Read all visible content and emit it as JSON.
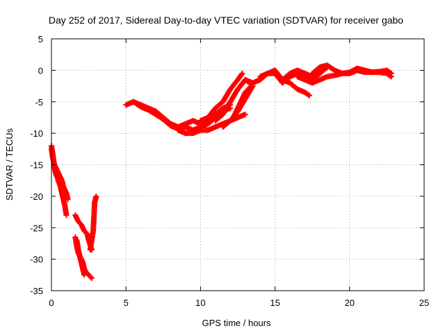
{
  "chart_data": {
    "type": "scatter",
    "title": "Day 252 of 2017, Sidereal Day-to-day VTEC variation (SDTVAR) for receiver gabo",
    "xlabel": "GPS time / hours",
    "ylabel": "SDTVAR / TECUs",
    "xlim": [
      0,
      25
    ],
    "ylim": [
      -35,
      5
    ],
    "xticks": [
      0,
      5,
      10,
      15,
      20,
      25
    ],
    "yticks": [
      5,
      0,
      -5,
      -10,
      -15,
      -20,
      -25,
      -30,
      -35
    ],
    "xtick_labels": [
      "0",
      "5",
      "10",
      "15",
      "20",
      "25"
    ],
    "ytick_labels": [
      "5",
      "0",
      "-5",
      "-10",
      "-15",
      "-20",
      "-25",
      "-30",
      "-35"
    ],
    "grid": true,
    "marker": "+",
    "color": "#ff0000",
    "series": [
      {
        "name": "arc-a",
        "x": [
          0.0,
          0.1,
          0.2,
          0.3,
          0.4,
          0.5,
          0.6,
          0.7,
          0.8,
          0.9,
          1.0
        ],
        "y": [
          -12.0,
          -13.5,
          -15.5,
          -16.5,
          -17.0,
          -17.8,
          -18.5,
          -19.5,
          -20.5,
          -21.5,
          -23.0
        ]
      },
      {
        "name": "arc-b",
        "x": [
          0.0,
          0.1,
          0.2,
          0.3,
          0.4,
          0.5,
          0.6,
          0.7,
          0.8,
          0.9,
          1.0,
          1.1
        ],
        "y": [
          -12.5,
          -14.0,
          -15.0,
          -15.5,
          -16.0,
          -16.5,
          -17.0,
          -17.5,
          -18.5,
          -19.0,
          -19.5,
          -20.5
        ]
      },
      {
        "name": "arc-c",
        "x": [
          1.6,
          1.8,
          2.0,
          2.2,
          2.4,
          2.5,
          2.7
        ],
        "y": [
          -23.0,
          -24.0,
          -24.5,
          -25.5,
          -26.0,
          -27.0,
          -28.5
        ]
      },
      {
        "name": "arc-d",
        "x": [
          1.6,
          1.7,
          1.8,
          1.9,
          2.0,
          2.1,
          2.2,
          2.3,
          2.5,
          2.7
        ],
        "y": [
          -26.5,
          -28.0,
          -29.0,
          -29.5,
          -30.0,
          -30.5,
          -31.5,
          -32.0,
          -32.5,
          -33.0
        ]
      },
      {
        "name": "arc-e",
        "x": [
          1.7,
          1.8,
          1.9,
          2.0,
          2.1,
          2.2
        ],
        "y": [
          -27.0,
          -28.5,
          -29.5,
          -30.5,
          -31.5,
          -32.5
        ]
      },
      {
        "name": "arc-f",
        "x": [
          2.6,
          2.8,
          2.9,
          3.0
        ],
        "y": [
          -28.5,
          -25.5,
          -21.0,
          -20.0
        ]
      },
      {
        "name": "arc-g",
        "x": [
          5.0,
          5.5,
          6.0,
          6.5,
          7.0,
          7.5,
          8.0,
          8.5,
          9.0,
          9.5,
          10.0,
          10.5,
          11.0,
          11.5,
          12.0
        ],
        "y": [
          -5.5,
          -5.0,
          -5.5,
          -6.0,
          -6.5,
          -7.5,
          -8.5,
          -9.0,
          -8.5,
          -8.0,
          -8.5,
          -8.0,
          -7.0,
          -6.0,
          -5.5
        ]
      },
      {
        "name": "arc-h",
        "x": [
          5.5,
          6.0,
          6.5,
          7.0,
          7.5,
          8.0,
          8.5,
          9.0,
          9.5,
          10.0,
          10.5,
          11.0,
          11.5,
          12.0
        ],
        "y": [
          -5.0,
          -5.8,
          -6.3,
          -7.0,
          -7.8,
          -8.8,
          -9.3,
          -9.0,
          -9.5,
          -9.0,
          -8.5,
          -7.5,
          -6.5,
          -6.0
        ]
      },
      {
        "name": "arc-i",
        "x": [
          8.5,
          9.0,
          9.5,
          10.0,
          10.5,
          11.0,
          11.5,
          12.0,
          12.5,
          13.0
        ],
        "y": [
          -9.5,
          -10.0,
          -10.0,
          -9.5,
          -9.5,
          -9.0,
          -8.5,
          -8.0,
          -7.5,
          -7.0
        ]
      },
      {
        "name": "arc-j",
        "x": [
          10.0,
          10.5,
          11.0,
          11.5,
          12.0,
          12.5,
          12.8
        ],
        "y": [
          -8.0,
          -7.5,
          -6.0,
          -5.0,
          -3.0,
          -1.5,
          -0.5
        ]
      },
      {
        "name": "arc-k",
        "x": [
          11.0,
          11.5,
          12.0,
          12.5,
          13.0,
          13.3
        ],
        "y": [
          -8.0,
          -7.0,
          -5.0,
          -3.0,
          -1.5,
          -2.0
        ]
      },
      {
        "name": "arc-l",
        "x": [
          11.5,
          12.0,
          12.5,
          13.0,
          13.5
        ],
        "y": [
          -9.0,
          -8.0,
          -6.5,
          -4.5,
          -2.5
        ]
      },
      {
        "name": "arc-m",
        "x": [
          12.2,
          12.6,
          13.0,
          13.4
        ],
        "y": [
          -7.5,
          -5.5,
          -3.5,
          -2.5
        ]
      },
      {
        "name": "arc-n",
        "x": [
          13.0,
          13.5,
          14.0,
          14.5,
          15.0,
          15.5,
          16.0,
          16.5,
          17.0,
          17.5,
          18.0,
          18.5
        ],
        "y": [
          -1.5,
          -2.0,
          -1.5,
          -0.5,
          -0.5,
          -2.0,
          -1.0,
          -0.5,
          -1.0,
          -1.5,
          -0.5,
          0.5
        ]
      },
      {
        "name": "arc-o",
        "x": [
          14.0,
          14.5,
          15.0,
          15.5,
          16.0,
          16.5,
          17.0,
          17.5,
          18.0
        ],
        "y": [
          -1.0,
          -0.5,
          0.0,
          -1.5,
          -0.5,
          0.0,
          -0.5,
          -1.0,
          0.0
        ]
      },
      {
        "name": "arc-p",
        "x": [
          15.5,
          16.0,
          16.5,
          17.0,
          17.3
        ],
        "y": [
          -1.5,
          -2.0,
          -3.0,
          -3.5,
          -4.0
        ]
      },
      {
        "name": "arc-q",
        "x": [
          16.5,
          17.0,
          17.5,
          18.0,
          18.5,
          19.0,
          19.5,
          20.0,
          20.5,
          21.0,
          21.5,
          22.0,
          22.5,
          22.8
        ],
        "y": [
          -1.0,
          -1.5,
          -2.0,
          -1.5,
          -1.0,
          -0.8,
          -0.5,
          -0.5,
          0.0,
          -0.3,
          -0.3,
          -0.3,
          -0.5,
          -1.0
        ]
      },
      {
        "name": "arc-r",
        "x": [
          17.5,
          18.0,
          18.5,
          19.0,
          19.5,
          20.0,
          20.5,
          21.0,
          21.5,
          22.0,
          22.5,
          22.8
        ],
        "y": [
          -0.5,
          0.5,
          0.8,
          0.0,
          -0.5,
          -0.3,
          0.3,
          0.0,
          -0.3,
          -0.2,
          0.0,
          -0.5
        ]
      }
    ]
  }
}
